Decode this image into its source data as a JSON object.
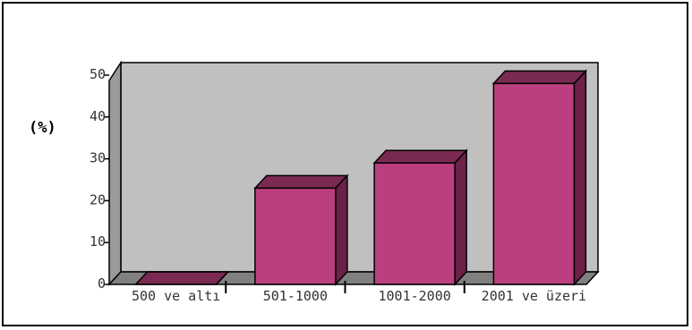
{
  "chart_data": {
    "type": "bar",
    "style": "3d",
    "title": "",
    "xlabel": "",
    "ylabel": "(%)",
    "categories": [
      "500 ve altı",
      "501-1000",
      "1001-2000",
      "2001 ve üzeri"
    ],
    "values": [
      0,
      23,
      29,
      48
    ],
    "ylim": [
      0,
      50
    ],
    "yticks": [
      0,
      10,
      20,
      30,
      40,
      50
    ],
    "grid": false,
    "legend": "none"
  },
  "colors": {
    "bar_front": "#bb3f7e",
    "bar_top": "#7a2a52",
    "bar_side": "#6b2148",
    "back_wall": "#c0c0c0",
    "floor": "#808080",
    "side_wall": "#9a9a9a"
  }
}
